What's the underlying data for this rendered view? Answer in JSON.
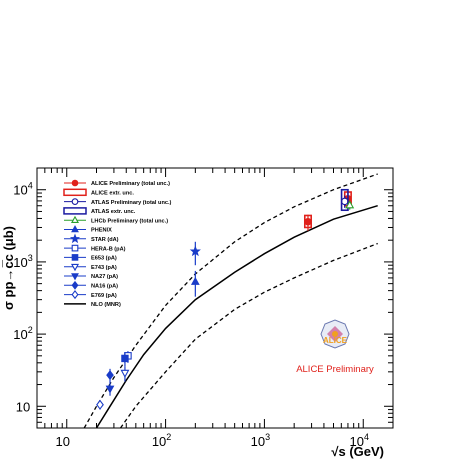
{
  "chart_data": {
    "type": "scatter",
    "xscale": "log",
    "yscale": "log",
    "xlim": [
      5,
      20000
    ],
    "ylim": [
      5,
      20000
    ],
    "xlabel_prefix": "√",
    "xlabel": "s (GeV)",
    "ylabel": "σ pp→c̅c (μb)",
    "xticks": [
      {
        "mantissa": "10",
        "exp": ""
      },
      {
        "mantissa": "10",
        "exp": "2"
      },
      {
        "mantissa": "10",
        "exp": "3"
      },
      {
        "mantissa": "10",
        "exp": "4"
      }
    ],
    "yticks": [
      {
        "mantissa": "10",
        "exp": ""
      },
      {
        "mantissa": "10",
        "exp": "2"
      },
      {
        "mantissa": "10",
        "exp": "3"
      },
      {
        "mantissa": "10",
        "exp": "4"
      }
    ],
    "series": [
      {
        "name": "ALICE Preliminary (total unc.)",
        "marker": "circle-filled",
        "color": "#e0211b",
        "points": [
          {
            "x": 2760,
            "y": 3600,
            "ylo": 2700,
            "yhi": 4500
          },
          {
            "x": 7000,
            "y": 7500,
            "ylo": 5900,
            "yhi": 9000
          }
        ]
      },
      {
        "name": "ALICE extr. unc.",
        "marker": "box-open",
        "color": "#e0211b",
        "points": [
          {
            "x": 2760,
            "y": 3600,
            "ylo": 3000,
            "yhi": 4400
          },
          {
            "x": 7000,
            "y": 7500,
            "ylo": 6000,
            "yhi": 9300
          }
        ]
      },
      {
        "name": "ATLAS Preliminary (total unc.)",
        "marker": "circle-open",
        "color": "#1a1aa0",
        "points": [
          {
            "x": 6500,
            "y": 6900,
            "ylo": 5600,
            "yhi": 8300
          }
        ]
      },
      {
        "name": "ATLAS extr. unc.",
        "marker": "box-open",
        "color": "#1a1aa0",
        "points": [
          {
            "x": 6500,
            "y": 6900,
            "ylo": 5200,
            "yhi": 10000
          }
        ]
      },
      {
        "name": "LHCb Preliminary (total unc.)",
        "marker": "triangle-open",
        "color": "#2ca02c",
        "points": [
          {
            "x": 7300,
            "y": 6100,
            "ylo": 5300,
            "yhi": 6900
          }
        ]
      },
      {
        "name": "PHENIX",
        "marker": "triangle-filled",
        "color": "#1a3cc8",
        "points": [
          {
            "x": 200,
            "y": 530,
            "ylo": 330,
            "yhi": 750
          }
        ]
      },
      {
        "name": "STAR (dA)",
        "marker": "star",
        "color": "#1a3cc8",
        "points": [
          {
            "x": 200,
            "y": 1400,
            "ylo": 900,
            "yhi": 1900
          }
        ]
      },
      {
        "name": "HERA-B (pA)",
        "marker": "square-open",
        "color": "#1a3cc8",
        "points": [
          {
            "x": 41.6,
            "y": 50,
            "ylo": 40,
            "yhi": 58
          }
        ]
      },
      {
        "name": "E653 (pA)",
        "marker": "square-filled",
        "color": "#1a3cc8",
        "points": [
          {
            "x": 38.8,
            "y": 46,
            "ylo": 36,
            "yhi": 56
          }
        ]
      },
      {
        "name": "E743 (pA)",
        "marker": "triangle-down-open",
        "color": "#1a3cc8",
        "points": [
          {
            "x": 38.8,
            "y": 29,
            "ylo": 22,
            "yhi": 36
          }
        ]
      },
      {
        "name": "NA27 (pA)",
        "marker": "triangle-down-filled",
        "color": "#1a3cc8",
        "points": [
          {
            "x": 27.4,
            "y": 17.5,
            "ylo": 14,
            "yhi": 21
          }
        ]
      },
      {
        "name": "NA16 (pA)",
        "marker": "diamond-filled",
        "color": "#1a3cc8",
        "points": [
          {
            "x": 27.4,
            "y": 27,
            "ylo": 21,
            "yhi": 33
          }
        ]
      },
      {
        "name": "E769 (pA)",
        "marker": "diamond-open",
        "color": "#1a3cc8",
        "points": [
          {
            "x": 21.7,
            "y": 10.5,
            "ylo": 9,
            "yhi": 12
          }
        ]
      },
      {
        "name": "NLO (MNR)",
        "marker": "line-solid",
        "color": "#000000",
        "curve": [
          {
            "x": 20,
            "y": 5
          },
          {
            "x": 27.4,
            "y": 10
          },
          {
            "x": 40,
            "y": 23
          },
          {
            "x": 60,
            "y": 52
          },
          {
            "x": 100,
            "y": 120
          },
          {
            "x": 200,
            "y": 300
          },
          {
            "x": 500,
            "y": 720
          },
          {
            "x": 1000,
            "y": 1300
          },
          {
            "x": 2000,
            "y": 2200
          },
          {
            "x": 5000,
            "y": 3900
          },
          {
            "x": 14000,
            "y": 6000
          }
        ],
        "band_upper": [
          {
            "x": 15,
            "y": 5
          },
          {
            "x": 20,
            "y": 10
          },
          {
            "x": 30,
            "y": 25
          },
          {
            "x": 50,
            "y": 70
          },
          {
            "x": 100,
            "y": 250
          },
          {
            "x": 200,
            "y": 680
          },
          {
            "x": 500,
            "y": 1900
          },
          {
            "x": 1000,
            "y": 3500
          },
          {
            "x": 2000,
            "y": 5800
          },
          {
            "x": 5000,
            "y": 10000
          },
          {
            "x": 14000,
            "y": 16500
          }
        ],
        "band_lower": [
          {
            "x": 35,
            "y": 5
          },
          {
            "x": 50,
            "y": 10
          },
          {
            "x": 100,
            "y": 30
          },
          {
            "x": 200,
            "y": 85
          },
          {
            "x": 500,
            "y": 220
          },
          {
            "x": 1000,
            "y": 380
          },
          {
            "x": 2000,
            "y": 600
          },
          {
            "x": 5000,
            "y": 1050
          },
          {
            "x": 14000,
            "y": 1800
          }
        ]
      }
    ],
    "legend_placement": "top-left",
    "legend_entries": [
      "ALICE Preliminary (total unc.)",
      "ALICE extr. unc.",
      "ATLAS Preliminary (total unc.)",
      "ATLAS extr. unc.",
      "LHCb Preliminary (total unc.)",
      "PHENIX",
      "STAR (dA)",
      "HERA-B (pA)",
      "E653 (pA)",
      "E743 (pA)",
      "NA27 (pA)",
      "NA16 (pA)",
      "E769 (pA)",
      "NLO (MNR)"
    ],
    "grid": false,
    "badge": {
      "logo_text": "ALICE",
      "text": "ALICE Preliminary"
    }
  },
  "colors": {
    "alice": "#e0211b",
    "atlas": "#1a1aa0",
    "lhcb": "#2ca02c",
    "lowE": "#1a3cc8",
    "theory": "#000000"
  }
}
